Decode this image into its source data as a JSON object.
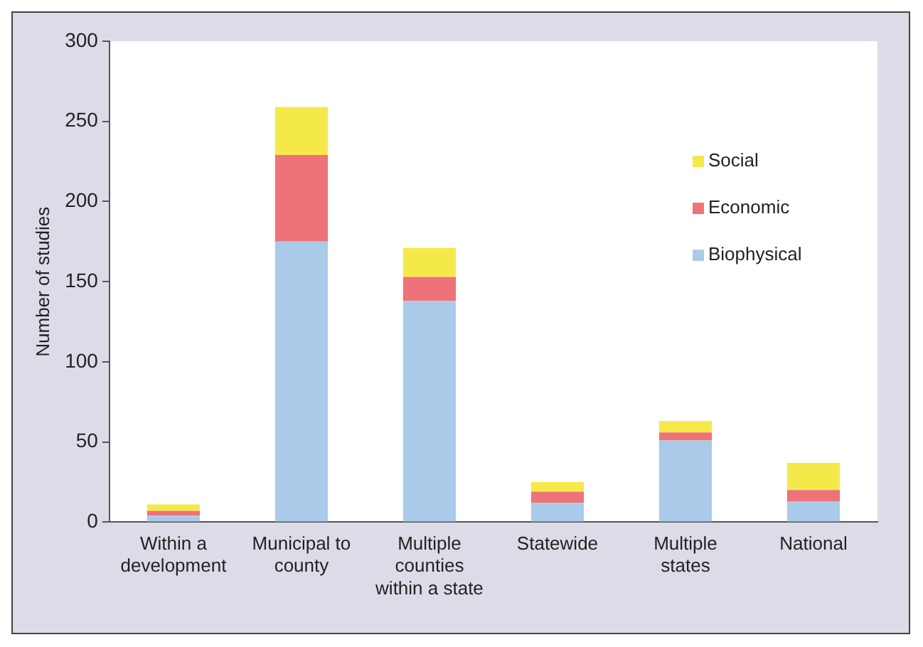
{
  "chart_data": {
    "type": "bar",
    "stacked": true,
    "ylabel": "Number of studies",
    "categories": [
      "Within a\ndevelopment",
      "Municipal to\ncounty",
      "Multiple\ncounties\nwithin a state",
      "Statewide",
      "Multiple\nstates",
      "National"
    ],
    "series": [
      {
        "name": "Biophysical",
        "color": "#a9cbe9",
        "values": [
          4,
          175,
          138,
          12,
          51,
          13
        ]
      },
      {
        "name": "Economic",
        "color": "#ee7378",
        "values": [
          3,
          54,
          15,
          7,
          5,
          7
        ]
      },
      {
        "name": "Social",
        "color": "#f5e94a",
        "values": [
          4,
          30,
          18,
          6,
          7,
          17
        ]
      }
    ],
    "ylim": [
      0,
      300
    ],
    "yticks": [
      0,
      50,
      100,
      150,
      200,
      250,
      300
    ],
    "grid": false,
    "legend": "right"
  }
}
